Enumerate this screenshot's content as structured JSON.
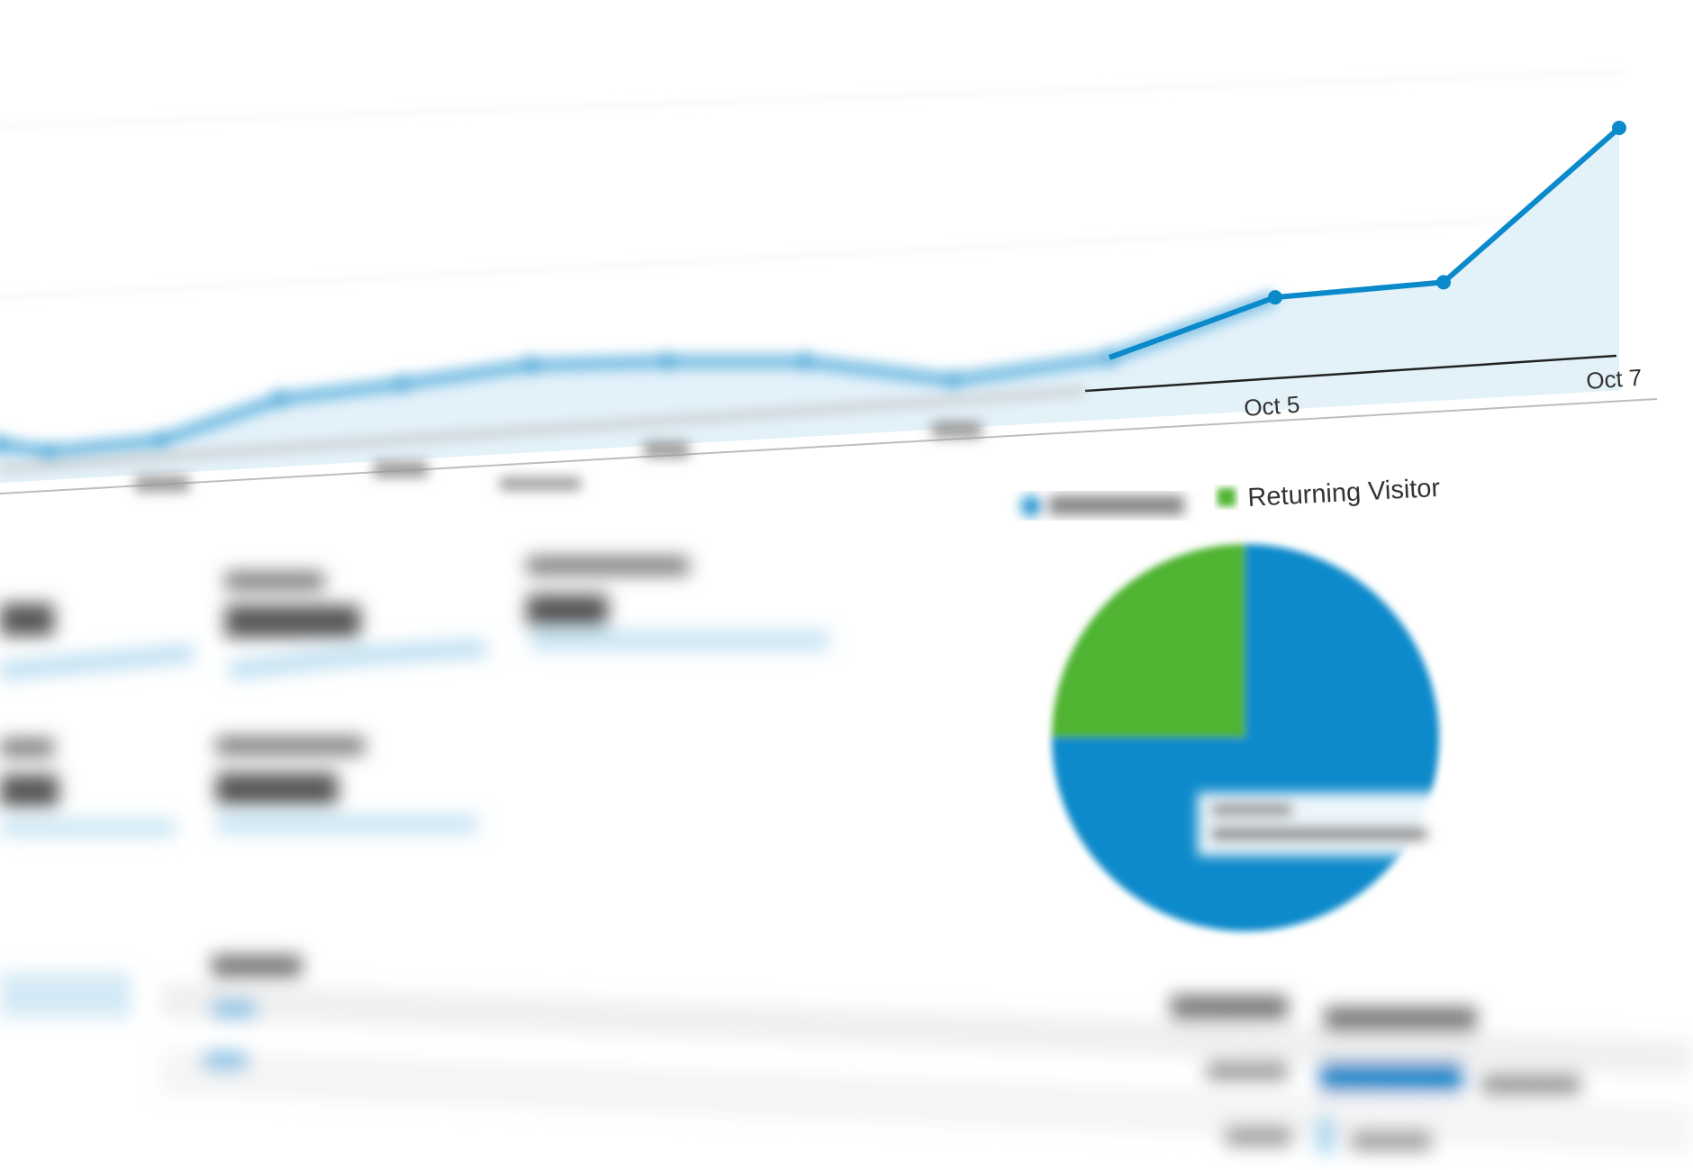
{
  "chart_data": [
    {
      "type": "area",
      "title": "",
      "xlabel": "",
      "ylabel": "",
      "x_tick_labels": [
        null,
        null,
        null,
        null,
        null,
        null,
        null,
        null,
        null,
        null,
        "Oct 5",
        null,
        "Oct 7"
      ],
      "values_note_scale": "relative 0-100 (no y-axis values legible)",
      "values": [
        16,
        14,
        17,
        28,
        32,
        37,
        38,
        38,
        33,
        39,
        55,
        59,
        100
      ],
      "ylim": [
        0,
        100
      ],
      "grid": true,
      "line_color": "#0a8acb",
      "fill_color": "#e3f1f9"
    },
    {
      "type": "pie",
      "legend": [
        {
          "label": null,
          "color": "#0a8acb"
        },
        {
          "label": "Returning Visitor",
          "color": "#50b432"
        }
      ],
      "legend_placement": "top",
      "slices": [
        {
          "label": null,
          "value": 75,
          "color": "#0a8acb"
        },
        {
          "label": "Returning Visitor",
          "value": 25,
          "color": "#50b432"
        }
      ]
    }
  ],
  "axis": {
    "oct5": "Oct 5",
    "oct7": "Oct 7"
  },
  "legend": {
    "returning": "Returning Visitor"
  }
}
